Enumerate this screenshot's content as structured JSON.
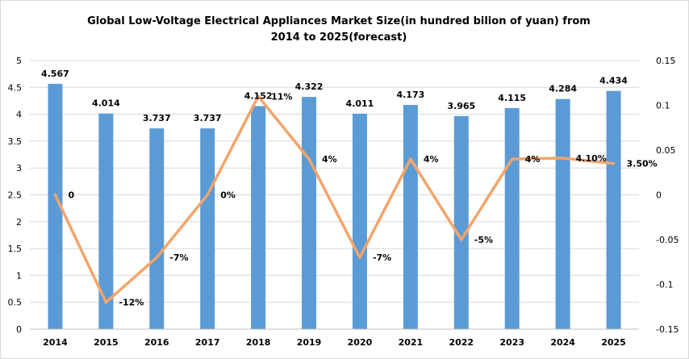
{
  "chart_data": {
    "type": "bar+line",
    "title": "Global Low-Voltage Electrical Appliances Market Size(in hundred bilion of yuan)  from 2014 to 2025(forecast)",
    "categories": [
      "2014",
      "2015",
      "2016",
      "2017",
      "2018",
      "2019",
      "2020",
      "2021",
      "2022",
      "2023",
      "2024",
      "2025"
    ],
    "series": [
      {
        "type": "bar",
        "axis": "left",
        "color": "#5b9bd5",
        "values": [
          4.567,
          4.014,
          3.737,
          3.737,
          4.152,
          4.322,
          4.011,
          4.173,
          3.965,
          4.115,
          4.284,
          4.434
        ],
        "labels": [
          "4.567",
          "4.014",
          "3.737",
          "3.737",
          "4.152",
          "4.322",
          "4.011",
          "4.173",
          "3.965",
          "4.115",
          "4.284",
          "4.434"
        ]
      },
      {
        "type": "line",
        "axis": "right",
        "color": "#f4a46a",
        "values": [
          0,
          -0.12,
          -0.07,
          0,
          0.11,
          0.04,
          -0.07,
          0.04,
          -0.05,
          0.04,
          0.041,
          0.035
        ],
        "labels": [
          "0",
          "-12%",
          "-7%",
          "0%",
          "11%",
          "4%",
          "-7%",
          "4%",
          "-5%",
          "4%",
          "4.10%",
          "3.50%"
        ]
      }
    ],
    "y_left": {
      "min": 0,
      "max": 5,
      "step": 0.5,
      "ticks": [
        "0",
        "0.5",
        "1",
        "1.5",
        "2",
        "2.5",
        "3",
        "3.5",
        "4",
        "4.5",
        "5"
      ]
    },
    "y_right": {
      "min": -0.15,
      "max": 0.15,
      "step": 0.05,
      "ticks": [
        "-0.15",
        "-0.1",
        "-0.05",
        "0",
        "0.05",
        "0.1",
        "0.15"
      ]
    },
    "grid": true,
    "legend": "none"
  }
}
